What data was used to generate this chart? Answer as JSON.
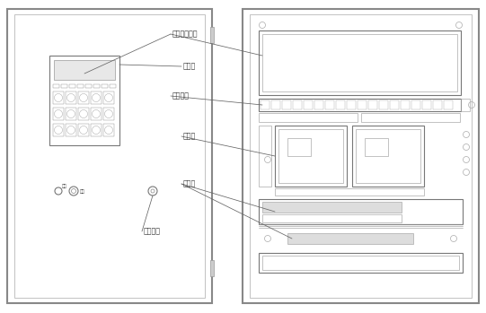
{
  "bg_color": "#ffffff",
  "line_color": "#666666",
  "dark_line": "#444444",
  "text_color": "#333333",
  "fig_width": 5.41,
  "fig_height": 3.49,
  "labels": {
    "panel_ctrl": "面板控制模块",
    "buzzer": "蜂鸣器",
    "power_module": "电源模块",
    "interface_board": "接口板",
    "battery": "蓄电池",
    "key_switch": "锁匙开关"
  }
}
